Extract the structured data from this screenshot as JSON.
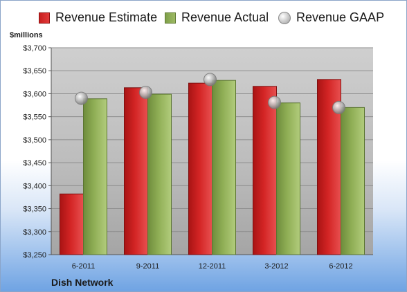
{
  "colors": {
    "estimate": "#d32424",
    "actual": "#8fae55",
    "gaap": "#b5b5b5",
    "plot_top": "#cfcfcf",
    "plot_bottom": "#a5a5a5"
  },
  "icons": {
    "gaap_marker": "sphere-marker"
  },
  "chart_data": {
    "type": "bar",
    "title": "",
    "ylabel": "$millions",
    "company": "Dish Network",
    "categories": [
      "6-2011",
      "9-2011",
      "12-2011",
      "3-2012",
      "6-2012"
    ],
    "ylim": [
      3250,
      3700
    ],
    "y_ticks": [
      3250,
      3300,
      3350,
      3400,
      3450,
      3500,
      3550,
      3600,
      3650,
      3700
    ],
    "y_tick_labels": [
      "$3,250",
      "$3,300",
      "$3,350",
      "$3,400",
      "$3,450",
      "$3,500",
      "$3,550",
      "$3,600",
      "$3,650",
      "$3,700"
    ],
    "grid": true,
    "legend_position": "top",
    "series": [
      {
        "name": "Revenue Estimate",
        "kind": "bar",
        "values": [
          3382,
          3613,
          3623,
          3616,
          3631
        ]
      },
      {
        "name": "Revenue Actual",
        "kind": "bar",
        "values": [
          3589,
          3599,
          3629,
          3580,
          3570
        ]
      },
      {
        "name": "Revenue GAAP",
        "kind": "marker",
        "values": [
          3590,
          3603,
          3631,
          3581,
          3570
        ]
      }
    ]
  }
}
